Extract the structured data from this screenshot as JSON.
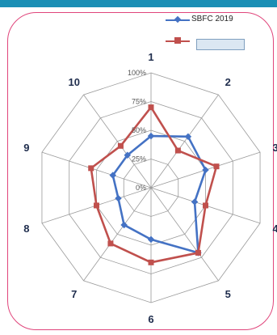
{
  "chart_data": {
    "type": "radar",
    "categories": [
      "1",
      "2",
      "3",
      "4",
      "5",
      "6",
      "7",
      "8",
      "9",
      "10"
    ],
    "rlim": [
      0,
      100
    ],
    "tick_labels": [
      "0%",
      "25%",
      "50%",
      "75%",
      "100%"
    ],
    "grid": true,
    "legend_position": "top-right",
    "series": [
      {
        "name": "SBFC 2019",
        "color": "#4472c4",
        "values": [
          45,
          55,
          50,
          40,
          70,
          45,
          40,
          30,
          35,
          35
        ]
      },
      {
        "name": "",
        "color": "#c0504d",
        "values": [
          70,
          40,
          60,
          50,
          70,
          65,
          60,
          50,
          55,
          45
        ]
      }
    ]
  }
}
